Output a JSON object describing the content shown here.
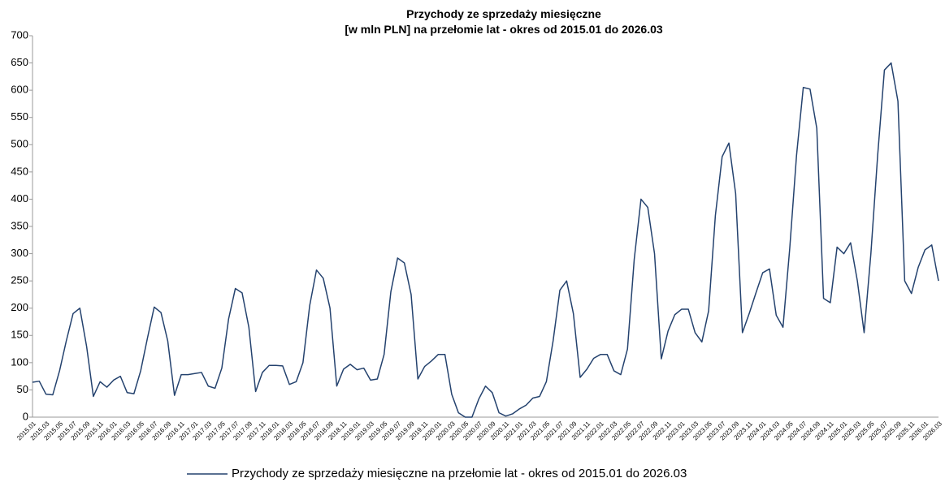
{
  "chart_data": {
    "type": "line",
    "title": [
      "Przychody ze sprzedaży miesięczne",
      "[w mln PLN] na przełomie lat - okres od 2015.01 do 2026.03"
    ],
    "categories": [
      "2015.01",
      null,
      "2015.03",
      null,
      "2015.05",
      null,
      "2015.07",
      null,
      "2015.09",
      null,
      "2015.11",
      null,
      "2016.01",
      null,
      "2016.03",
      null,
      "2016.05",
      null,
      "2016.07",
      null,
      "2016.09",
      null,
      "2016.11",
      null,
      "2017.01",
      null,
      "2017.03",
      null,
      "2017.05",
      null,
      "2017.07",
      null,
      "2017.09",
      null,
      "2017.11",
      null,
      "2018.01",
      null,
      "2018.03",
      null,
      "2018.05",
      null,
      "2018.07",
      null,
      "2018.09",
      null,
      "2018.11",
      null,
      "2019.01",
      null,
      "2019.03",
      null,
      "2019.05",
      null,
      "2019.07",
      null,
      "2019.09",
      null,
      "2019.11",
      null,
      "2020.01",
      null,
      "2020.03",
      null,
      "2020.05",
      null,
      "2020.07",
      null,
      "2020.09",
      null,
      "2020.11",
      null,
      "2021.01",
      null,
      "2021.03",
      null,
      "2021.05",
      null,
      "2021.07",
      null,
      "2021.09",
      null,
      "2021.11",
      null,
      "2022.01",
      null,
      "2022.03",
      null,
      "2022.05",
      null,
      "2022.07",
      null,
      "2022.09",
      null,
      "2022.11",
      null,
      "2023.01",
      null,
      "2023.03",
      null,
      "2023.05",
      null,
      "2023.07",
      null,
      "2023.09",
      null,
      "2023.11",
      null,
      "2024.01",
      null,
      "2024.03",
      null,
      "2024.05",
      null,
      "2024.07",
      null,
      "2024.09",
      null,
      "2024.11",
      null,
      "2025.01",
      null,
      "2025.03",
      null,
      "2025.05",
      null,
      "2025.07",
      null,
      "2025.09",
      null,
      "2025.11",
      null,
      "2026.01",
      null,
      "2026.03"
    ],
    "series": [
      {
        "name": "Przychody ze sprzedaży miesięczne na przełomie lat - okres od 2015.01 do 2026.03",
        "color": "#24426e",
        "values": [
          64,
          66,
          42,
          41,
          85,
          140,
          190,
          200,
          130,
          38,
          65,
          55,
          68,
          75,
          45,
          43,
          85,
          145,
          202,
          192,
          140,
          40,
          78,
          78,
          80,
          82,
          57,
          53,
          90,
          180,
          236,
          228,
          165,
          47,
          82,
          95,
          95,
          94,
          60,
          65,
          100,
          205,
          270,
          255,
          200,
          57,
          88,
          97,
          87,
          90,
          68,
          70,
          115,
          230,
          292,
          283,
          225,
          70,
          93,
          103,
          115,
          115,
          42,
          8,
          0,
          0,
          33,
          57,
          45,
          8,
          2,
          6,
          15,
          22,
          35,
          38,
          65,
          140,
          233,
          250,
          190,
          73,
          88,
          108,
          115,
          115,
          85,
          78,
          125,
          290,
          400,
          385,
          300,
          107,
          158,
          188,
          198,
          198,
          155,
          138,
          195,
          370,
          478,
          503,
          410,
          155,
          190,
          228,
          265,
          272,
          187,
          165,
          310,
          480,
          605,
          602,
          530,
          218,
          210,
          312,
          300,
          320,
          250,
          155,
          300,
          480,
          637,
          650,
          580,
          250,
          227,
          275,
          307,
          316,
          250
        ]
      }
    ],
    "ylim": [
      0,
      700
    ],
    "yticks": [
      0,
      50,
      100,
      150,
      200,
      250,
      300,
      350,
      400,
      450,
      500,
      550,
      600,
      650,
      700
    ],
    "grid": false,
    "legend": "bottom"
  }
}
